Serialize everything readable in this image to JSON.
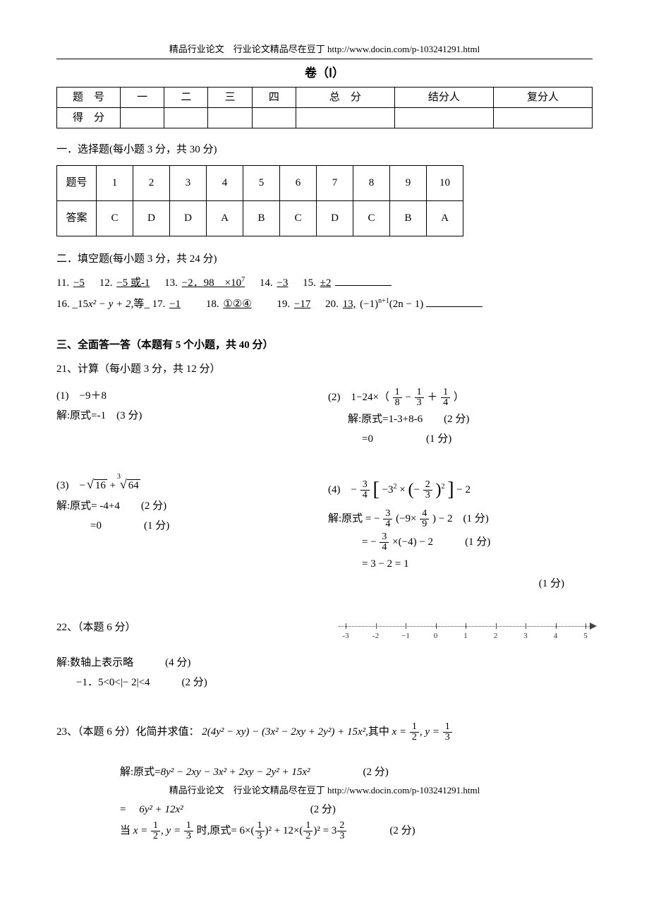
{
  "header_url": "精品行业论文　行业论文精品尽在豆丁 http://www.docin.com/p-103241291.html",
  "volume_title": "卷（Ⅰ）",
  "score_table": {
    "row1": [
      "题　号",
      "一",
      "二",
      "三",
      "四",
      "总　分",
      "结分人",
      "复分人"
    ],
    "row2_label": "得　分"
  },
  "sect1_title": "一．选择题(每小题 3 分，共 30 分)",
  "answer_table": {
    "header_label": "题号",
    "numbers": [
      "1",
      "2",
      "3",
      "4",
      "5",
      "6",
      "7",
      "8",
      "9",
      "10"
    ],
    "answer_label": "答案",
    "answers": [
      "C",
      "D",
      "D",
      "A",
      "B",
      "C",
      "D",
      "C",
      "B",
      "A"
    ]
  },
  "sect2_title": "二．填空题(每小题 3 分，共 24 分)",
  "fill_line1": {
    "q11": "11.",
    "a11": "−5",
    "q12": "12.",
    "a12": "−5 或-1",
    "q13": "13.",
    "a13": "−2．98　×10",
    "a13_sup": "7",
    "q14": "14.",
    "a14": "−3",
    "q15": "15.",
    "a15": "±2"
  },
  "fill_line2": {
    "q16": "16. _15",
    "q16_expr": "x² − y + 2",
    "q16_tail": ",等_",
    "q17": "17.",
    "a17": "−1",
    "q18": "18.",
    "a18": "①②④",
    "q19": "19.",
    "a19": "−17",
    "q20": "20.",
    "a20_a": "13,",
    "a20_b": "(−1)",
    "a20_sup": "n+1",
    "a20_c": "(2n − 1)"
  },
  "sect3_title": "三、全面答一答（本题有 5 个小题，共 40 分）",
  "q21_head": "21、计算（每小题 3 分，共 12 分）",
  "q21_1": {
    "prob": "(1)　−9＋8",
    "sol1": "解:原式=-1　(3 分)"
  },
  "q21_2": {
    "prob_pre": "(2)　1−24×（",
    "f1n": "1",
    "f1d": "8",
    "minus": "−",
    "f2n": "1",
    "f2d": "3",
    "plus": "＋",
    "f3n": "1",
    "f3d": "4",
    "prob_post": "）",
    "sol1": "解:原式=1-3+8-6　　(2 分)",
    "sol2": "=0　　　　　(1 分)"
  },
  "q21_3": {
    "prob_pre": "(3)　−",
    "r1": "16",
    "plus": " + ",
    "r2_idx": "3",
    "r2": "64",
    "sol1": "解:原式= -4+4　　(2 分)",
    "sol2": "=0　　　　(1 分)"
  },
  "q21_4": {
    "prob_pre": "(4)　−",
    "f_outer_n": "3",
    "f_outer_d": "4",
    "brL": "[",
    "inner_a": "−3",
    "sq2": "2",
    "times": "×",
    "parenL": "(",
    "neg": "−",
    "f_in_n": "2",
    "f_in_d": "3",
    "parenR": ")",
    "sq_outer": "2",
    "brR": "]",
    "tail": " − 2",
    "sol1_pre": "解:原式 = −",
    "s1_fn": "3",
    "s1_fd": "4",
    "s1_mid": "(−9×",
    "s1_f2n": "4",
    "s1_f2d": "9",
    "s1_post": ") − 2　(1 分)",
    "sol2_pre": "= −",
    "s2_fn": "3",
    "s2_fd": "4",
    "s2_mid": "×(−4) − 2",
    "s2_pts": "(1 分)",
    "sol3": "= 3 − 2 = 1",
    "sol3_pts": "(1 分)"
  },
  "q22_head": "22、（本题 6 分）",
  "q22_sol1": "解:数轴上表示略　　　(4 分)",
  "q22_sol2": "−1．5<0<|− 2|<4　　　(2 分)",
  "numline": {
    "ticks": [
      "-3",
      "-2",
      "−1",
      "0",
      "1",
      "2",
      "3",
      "4",
      "5"
    ]
  },
  "q23": {
    "head_pre": "23、（本题 6 分）化简并求值：",
    "expr": "2(4y² − xy) − (3x² − 2xy + 2y²) + 15x²",
    "mid": ",其中 ",
    "x_eq": "x = ",
    "xv_n": "1",
    "xv_d": "2",
    "comma": ", ",
    "y_eq": "y = ",
    "yv_n": "1",
    "yv_d": "3",
    "s1_pre": "解:原式=",
    "s1": "8y² − 2xy − 3x² + 2xy − 2y² + 15x²",
    "s1_pts": "(2 分)",
    "s2_pre": "= ",
    "s2": "6y² + 12x²",
    "s2_pts": "(2 分)",
    "s3_pre": "当 ",
    "s3_x": "x = ",
    "s3xn": "1",
    "s3xd": "2",
    "s3_c": ", ",
    "s3_y": "y = ",
    "s3yn": "1",
    "s3yd": "3",
    "s3_mid": " 时,原式= ",
    "s3_expr_a": "6×(",
    "s3an": "1",
    "s3ad": "3",
    "s3_expr_b": ")² + 12×(",
    "s3bn": "1",
    "s3bd": "2",
    "s3_expr_c": ")²",
    "s3_eq": " = 3",
    "s3rn": "2",
    "s3rd": "3",
    "s3_pts": "(2 分)"
  },
  "footer_url": "精品行业论文　行业论文精品尽在豆丁 http://www.docin.com/p-103241291.html"
}
